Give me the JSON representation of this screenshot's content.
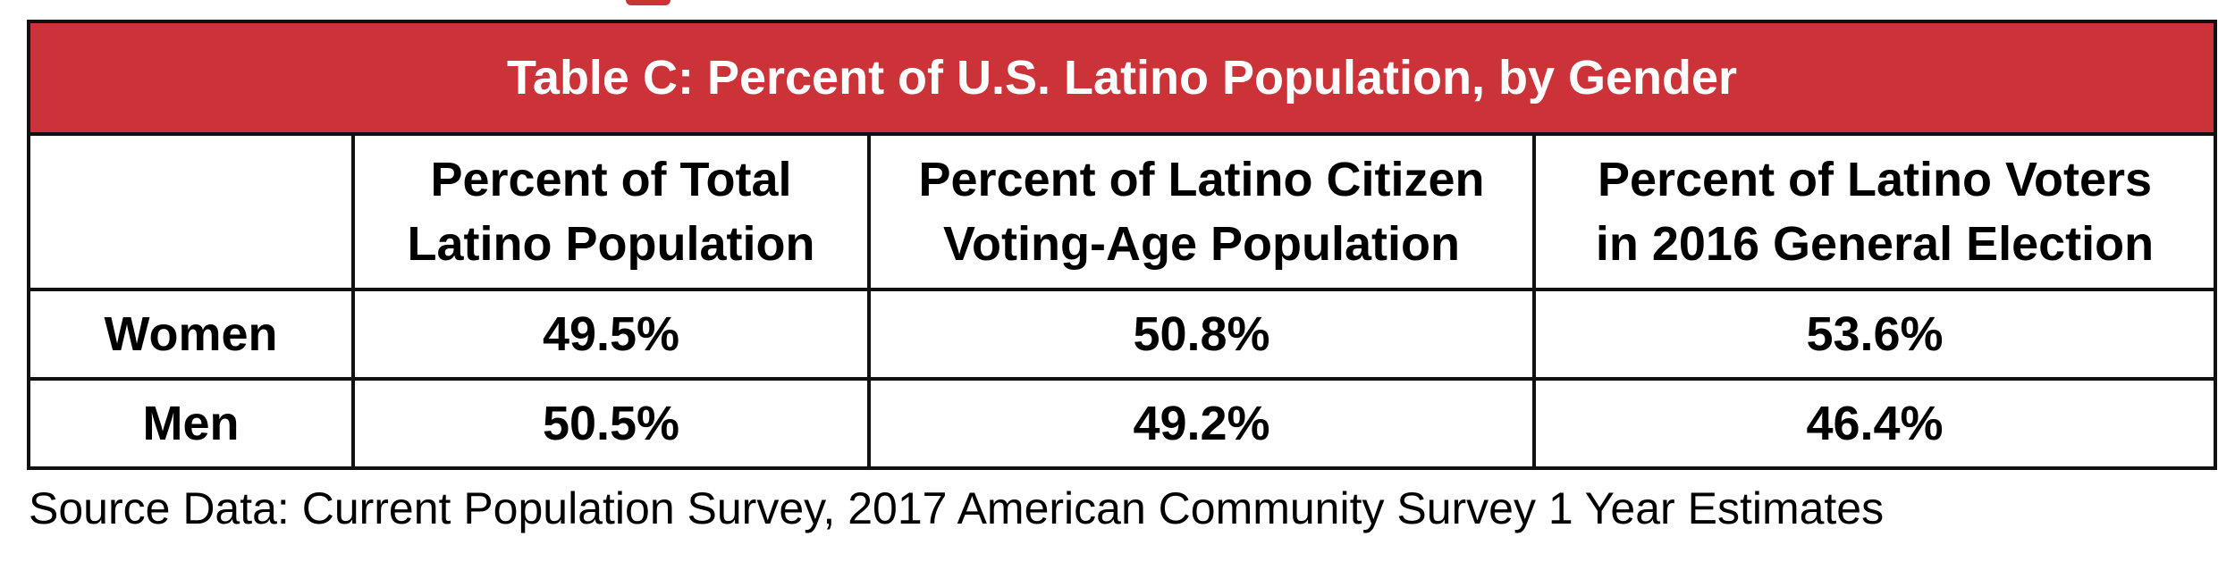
{
  "accent_color": "#cc3339",
  "table": {
    "title": "Table C: Percent of U.S. Latino Population, by Gender",
    "columns": [
      {
        "line1": "",
        "line2": ""
      },
      {
        "line1": "Percent of Total",
        "line2": "Latino Population"
      },
      {
        "line1": "Percent of Latino Citizen",
        "line2": "Voting-Age Population"
      },
      {
        "line1": "Percent of Latino Voters",
        "line2": "in 2016 General Election"
      }
    ],
    "rows": [
      {
        "label": "Women",
        "values": [
          "49.5%",
          "50.8%",
          "53.6%"
        ]
      },
      {
        "label": "Men",
        "values": [
          "50.5%",
          "49.2%",
          "46.4%"
        ]
      }
    ]
  },
  "source": "Source Data: Current Population Survey, 2017 American Community Survey 1 Year Estimates"
}
